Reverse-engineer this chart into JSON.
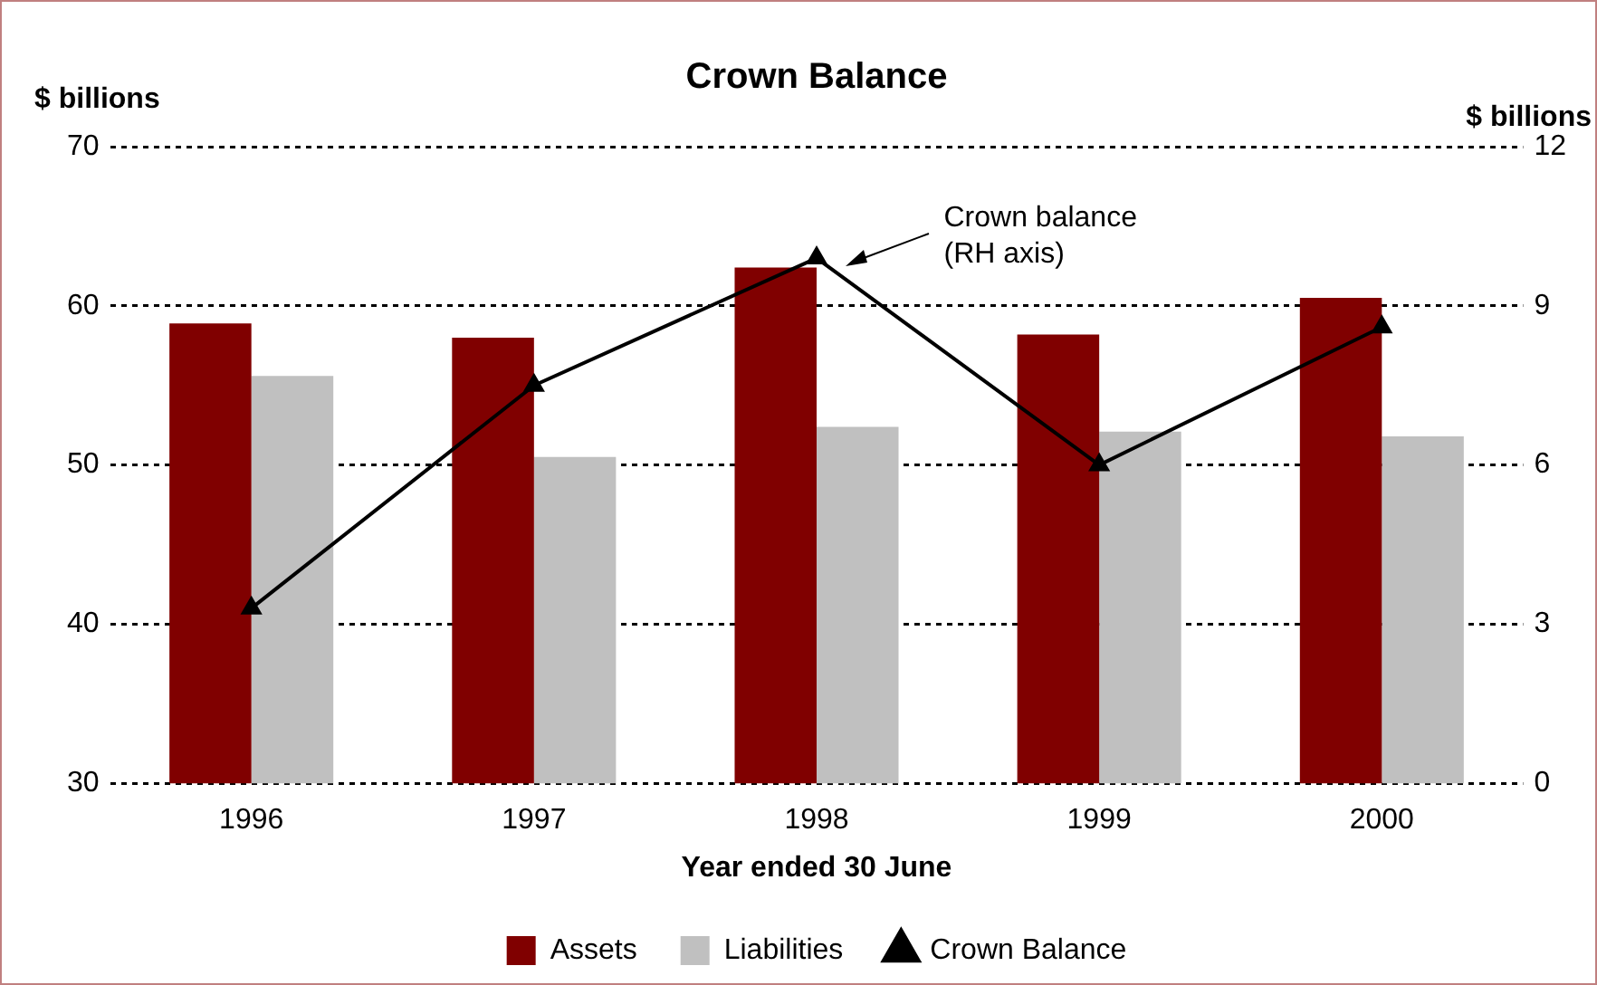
{
  "chart_data": {
    "type": "bar",
    "title": "Crown Balance",
    "xlabel": "Year ended 30 June",
    "ylabel": "$ billions",
    "y2label": "$ billions",
    "categories": [
      "1996",
      "1997",
      "1998",
      "1999",
      "2000"
    ],
    "series": [
      {
        "name": "Assets",
        "color": "#800000",
        "values": [
          58.9,
          58.0,
          62.4,
          58.2,
          60.5
        ]
      },
      {
        "name": "Liabilities",
        "color": "#c0c0c0",
        "values": [
          55.6,
          50.5,
          52.4,
          52.1,
          51.8
        ]
      },
      {
        "name": "Crown Balance",
        "type": "line",
        "axis": "y2",
        "color": "#000000",
        "marker": "triangle",
        "values": [
          3.3,
          7.5,
          9.9,
          6.0,
          8.6
        ]
      }
    ],
    "ylim": [
      30,
      70
    ],
    "yticks": [
      30,
      40,
      50,
      60,
      70
    ],
    "y2lim": [
      0,
      12
    ],
    "y2ticks": [
      0,
      3,
      6,
      9,
      12
    ],
    "grid": "y",
    "legend": "bottom",
    "annotations": [
      "Crown balance\n(RH axis)"
    ]
  }
}
